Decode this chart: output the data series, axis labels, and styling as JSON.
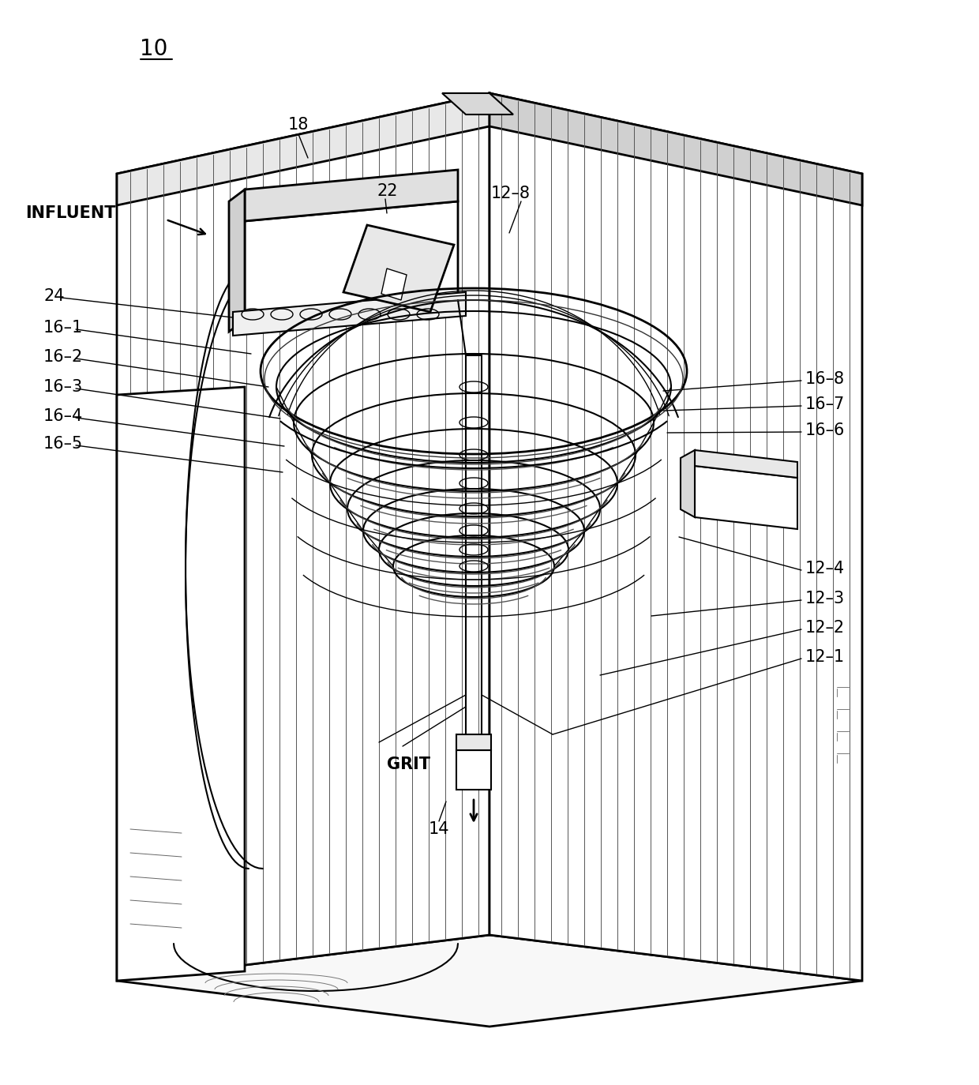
{
  "background_color": "#ffffff",
  "line_color": "#000000",
  "labels": {
    "main_ref": "10",
    "influent": "INFLUENT",
    "ref_18": "18",
    "ref_22": "22",
    "ref_24": "24",
    "ref_14": "14",
    "ref_12_8": "12–8",
    "ref_12_4": "12–4",
    "ref_12_3": "12–3",
    "ref_12_2": "12–2",
    "ref_12_1": "12–1",
    "ref_16_1": "16–1",
    "ref_16_2": "16–2",
    "ref_16_3": "16–3",
    "ref_16_4": "16–4",
    "ref_16_5": "16–5",
    "ref_16_6": "16–6",
    "ref_16_7": "16–7",
    "ref_16_8": "16–8",
    "grit": "GRIT"
  },
  "figsize": [
    12.4,
    13.74
  ],
  "dpi": 100
}
